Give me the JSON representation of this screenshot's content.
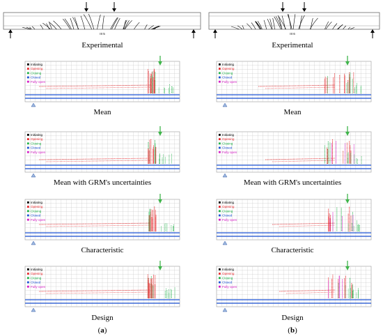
{
  "beams": [
    {
      "label": "Experimental",
      "specimen": "III 5"
    },
    {
      "label": "Experimental",
      "specimen": "III 6"
    }
  ],
  "legend": {
    "items": [
      {
        "label": "Initiating",
        "color": "#000000"
      },
      {
        "label": "Opening",
        "color": "#e8282c"
      },
      {
        "label": "Closing",
        "color": "#21b34a"
      },
      {
        "label": "Closed",
        "color": "#1f55d6"
      },
      {
        "label": "Fully open",
        "color": "#d81ec8"
      }
    ]
  },
  "rows": [
    {
      "caption": "Mean"
    },
    {
      "caption": "Mean with GRM's uncertainties"
    },
    {
      "caption": "Characteristic"
    },
    {
      "caption": "Design"
    }
  ],
  "columns": [
    {
      "label": "(a)",
      "letter": "a"
    },
    {
      "label": "(b)",
      "letter": "b"
    }
  ],
  "colors": {
    "opening": "#e8282c",
    "closing": "#21b34a",
    "closed": "#1f55d6",
    "fully_open": "#d81ec8",
    "arrow": "#3fb54a",
    "grid": "#c8c8c8"
  },
  "icons": [
    "load-arrow-icon",
    "support-arrow-icon",
    "support-triangle-icon"
  ]
}
